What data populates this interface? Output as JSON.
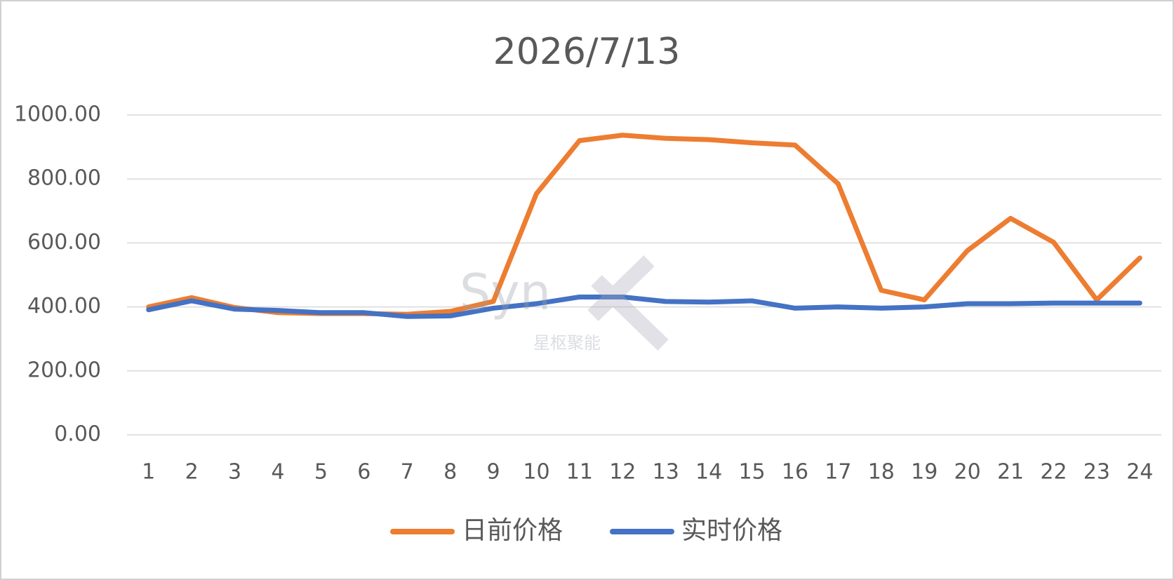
{
  "chart_data": {
    "type": "line",
    "title": "2026/7/13",
    "categories": [
      "1",
      "2",
      "3",
      "4",
      "5",
      "6",
      "7",
      "8",
      "9",
      "10",
      "11",
      "12",
      "13",
      "14",
      "15",
      "16",
      "17",
      "18",
      "19",
      "20",
      "21",
      "22",
      "23",
      "24"
    ],
    "series": [
      {
        "name": "日前价格",
        "color": "#ed7d31",
        "values": [
          400,
          429,
          398,
          382,
          379,
          379,
          377,
          386,
          417,
          754,
          920,
          937,
          927,
          923,
          913,
          906,
          785,
          452,
          422,
          576,
          677,
          602,
          422,
          553
        ]
      },
      {
        "name": "实时价格",
        "color": "#4472c4",
        "values": [
          391,
          419,
          393,
          389,
          382,
          382,
          370,
          372,
          396,
          410,
          431,
          431,
          417,
          415,
          419,
          396,
          400,
          396,
          400,
          410,
          410,
          412,
          412,
          412
        ]
      }
    ],
    "ylim": [
      0,
      1000
    ],
    "yticks": [
      {
        "value": 0,
        "label": "0.00"
      },
      {
        "value": 200,
        "label": "200.00"
      },
      {
        "value": 400,
        "label": "400.00"
      },
      {
        "value": 600,
        "label": "600.00"
      },
      {
        "value": 800,
        "label": "800.00"
      },
      {
        "value": 1000,
        "label": "1000.00"
      }
    ],
    "grid": true,
    "legend": "bottom",
    "watermark": "Syn",
    "watermark_subtitle": "星枢聚能"
  }
}
